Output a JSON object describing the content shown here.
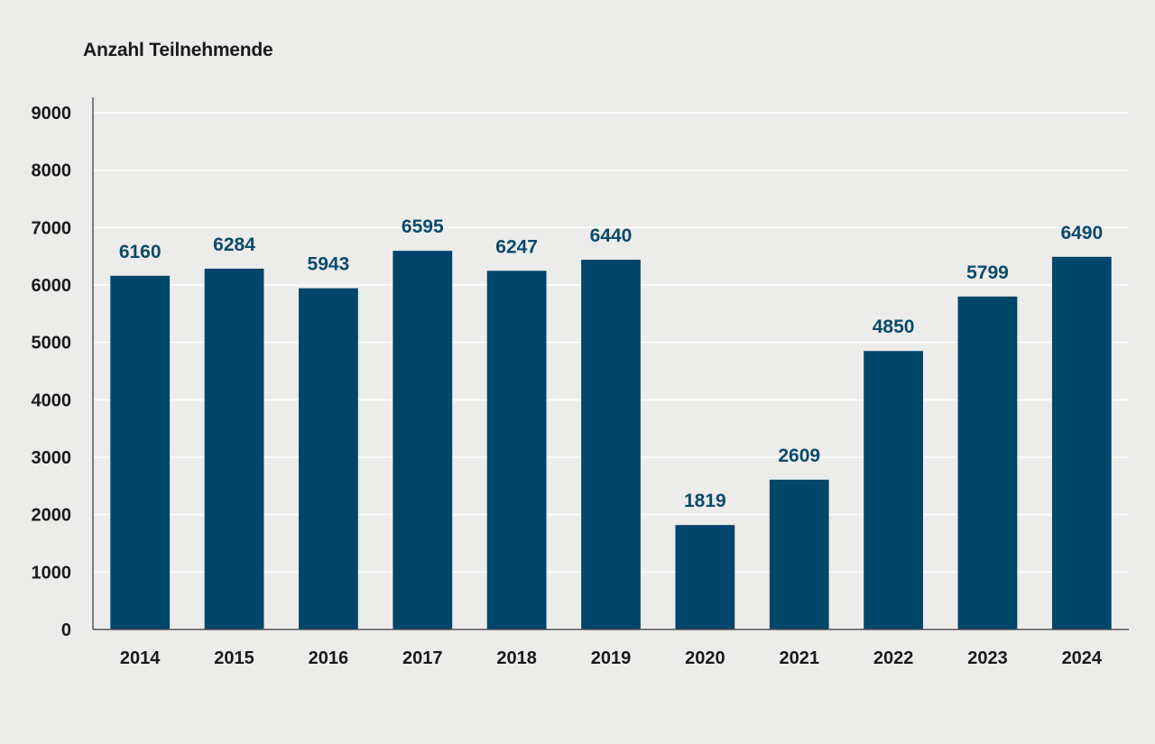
{
  "chart_data": {
    "type": "bar",
    "title": "",
    "xlabel": "",
    "ylabel": "Anzahl Teilnehmende",
    "categories": [
      "2014",
      "2015",
      "2016",
      "2017",
      "2018",
      "2019",
      "2020",
      "2021",
      "2022",
      "2023",
      "2024"
    ],
    "values": [
      6160,
      6284,
      5943,
      6595,
      6247,
      6440,
      1819,
      2609,
      4850,
      5799,
      6490
    ],
    "ylim": [
      0,
      9000
    ],
    "yticks": [
      0,
      1000,
      2000,
      3000,
      4000,
      5000,
      6000,
      7000,
      8000,
      9000
    ],
    "grid": true,
    "legend": "none",
    "data_labels": true
  },
  "colors": {
    "bar": "#00456a",
    "data_label": "#0b4a6b",
    "grid": "#ffffff",
    "axis": "#555555",
    "background": "#ececea"
  }
}
